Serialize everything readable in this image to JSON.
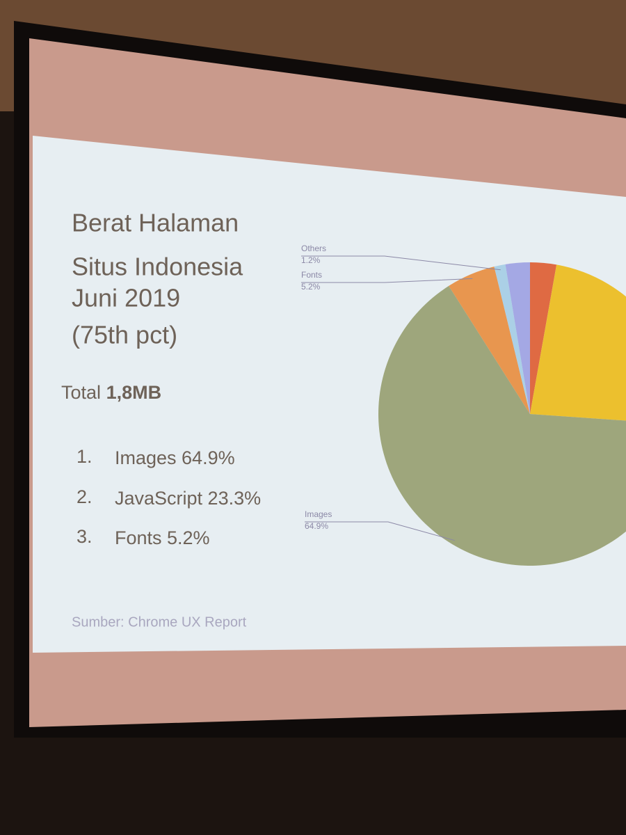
{
  "slide": {
    "title": [
      "Berat Halaman",
      "Situs Indonesia",
      "Juni 2019",
      "(75th pct)"
    ],
    "total_label": "Total",
    "total_value": "1,8MB",
    "list": [
      {
        "number": "1.",
        "text": "Images 64.9%"
      },
      {
        "number": "2.",
        "text": "JavaScript 23.3%"
      },
      {
        "number": "3.",
        "text": "Fonts 5.2%"
      }
    ],
    "source": "Sumber: Chrome UX Report"
  },
  "chart_data": {
    "type": "pie",
    "categories": [
      null,
      null,
      "Images",
      "Fonts",
      "Others",
      null
    ],
    "values": [
      2.8,
      23.3,
      64.9,
      5.2,
      1.2,
      2.6
    ],
    "value_labels": [
      null,
      null,
      "64.9%",
      "5.2%",
      "1.2%",
      null
    ],
    "colors": [
      "#df6a43",
      "#ecc02e",
      "#9ea67c",
      "#e8964f",
      "#abd0e6",
      "#a4a8e4"
    ]
  }
}
